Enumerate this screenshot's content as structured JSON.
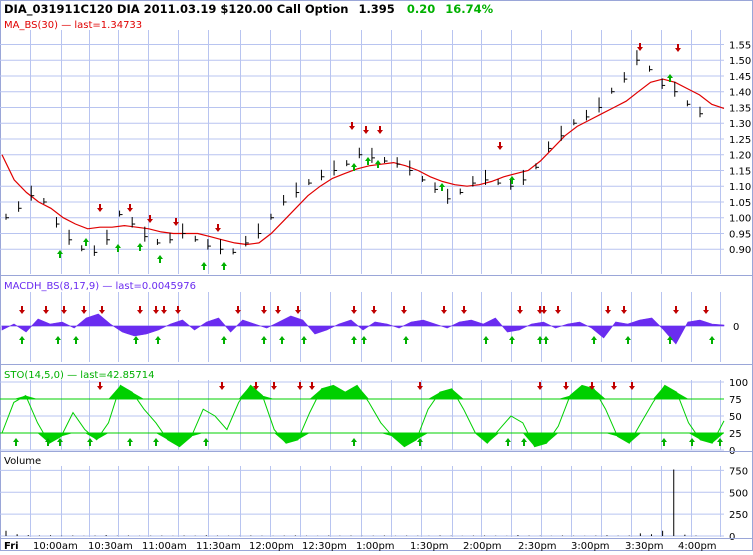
{
  "header": {
    "symbol": "DIA_031911C120 DIA 2011.03.19 $120.00 Call Option",
    "last": "1.395",
    "change": "0.20",
    "change_pct": "16.74%"
  },
  "colors": {
    "grid": "#b8c4f0",
    "frame": "#9aa6d8",
    "price": "#000000",
    "ma": "#e00000",
    "macd_fill": "#6a2cf0",
    "sto": "#00d000",
    "sell_arrow": "#c00000",
    "buy_arrow": "#00b000",
    "up_text": "#00b000",
    "volume": "#000000"
  },
  "chart_data": [
    {
      "type": "line",
      "panel": "price",
      "indicator_label": "MA_BS(30) — last=1.34733",
      "y_ticks": [
        "1.55",
        "1.50",
        "1.45",
        "1.40",
        "1.35",
        "1.30",
        "1.25",
        "1.20",
        "1.15",
        "1.10",
        "1.05",
        "1.00",
        "0.95",
        "0.90"
      ],
      "ylim": [
        0.85,
        1.58
      ],
      "x_labels": [
        "Fri",
        "10:00am",
        "10:30am",
        "11:00am",
        "11:30am",
        "12:00pm",
        "12:30pm",
        "1:00pm",
        "1:30pm",
        "2:00pm",
        "2:30pm",
        "3:00pm",
        "3:30pm",
        "4:00pm"
      ],
      "price": [
        1.0,
        1.03,
        1.07,
        1.05,
        0.98,
        0.93,
        0.9,
        0.89,
        0.93,
        1.01,
        0.98,
        0.94,
        0.92,
        0.93,
        0.95,
        0.93,
        0.91,
        0.9,
        0.89,
        0.92,
        0.95,
        1.0,
        1.05,
        1.08,
        1.11,
        1.13,
        1.15,
        1.17,
        1.2,
        1.19,
        1.18,
        1.17,
        1.15,
        1.12,
        1.09,
        1.06,
        1.08,
        1.11,
        1.12,
        1.11,
        1.1,
        1.12,
        1.16,
        1.22,
        1.26,
        1.3,
        1.32,
        1.35,
        1.4,
        1.44,
        1.5,
        1.47,
        1.42,
        1.4,
        1.36,
        1.33
      ],
      "ma": [
        1.2,
        1.12,
        1.08,
        1.05,
        1.03,
        1.0,
        0.98,
        0.965,
        0.97,
        0.97,
        0.975,
        0.97,
        0.965,
        0.955,
        0.95,
        0.95,
        0.95,
        0.94,
        0.93,
        0.92,
        0.915,
        0.92,
        0.95,
        0.99,
        1.03,
        1.07,
        1.1,
        1.125,
        1.14,
        1.155,
        1.165,
        1.17,
        1.175,
        1.165,
        1.15,
        1.13,
        1.115,
        1.105,
        1.1,
        1.105,
        1.115,
        1.13,
        1.14,
        1.15,
        1.18,
        1.22,
        1.26,
        1.29,
        1.31,
        1.33,
        1.35,
        1.37,
        1.4,
        1.43,
        1.44,
        1.43,
        1.41,
        1.39,
        1.36,
        1.347
      ]
    },
    {
      "type": "area",
      "panel": "macd",
      "indicator_label": "MACDH_BS(8,17,9) — last=0.0045976",
      "y_ticks": [
        "0"
      ],
      "values": [
        -0.2,
        0.1,
        -0.3,
        0.35,
        0.1,
        0.2,
        -0.1,
        0.4,
        0.6,
        0.1,
        -0.3,
        -0.5,
        -0.4,
        -0.2,
        0.1,
        0.3,
        -0.2,
        0.2,
        0.4,
        -0.3,
        0.3,
        0.1,
        -0.1,
        0.2,
        0.5,
        0.3,
        -0.4,
        -0.2,
        0.1,
        0.3,
        -0.2,
        0.2,
        0.1,
        -0.1,
        0.2,
        0.3,
        0.1,
        -0.1,
        0.2,
        0.3,
        0.1,
        0.4,
        -0.3,
        -0.2,
        0.1,
        0.2,
        -0.1,
        0.1,
        0.2,
        -0.1,
        -0.6,
        0.2,
        0.1,
        0.3,
        0.4,
        -0.2,
        -0.9,
        0.2,
        0.3,
        0.1,
        0.05
      ]
    },
    {
      "type": "area",
      "panel": "stochastic",
      "indicator_label": "STO(14,5,0) — last=42.85714",
      "y_ticks": [
        "100",
        "75",
        "50",
        "25",
        "0"
      ],
      "ylim": [
        0,
        100
      ],
      "levels": [
        75,
        25
      ],
      "values": [
        25,
        70,
        80,
        40,
        10,
        20,
        55,
        30,
        15,
        40,
        95,
        85,
        60,
        40,
        15,
        5,
        20,
        60,
        50,
        30,
        70,
        95,
        80,
        30,
        10,
        15,
        55,
        90,
        95,
        85,
        95,
        70,
        40,
        20,
        5,
        15,
        60,
        85,
        90,
        60,
        25,
        10,
        30,
        50,
        40,
        5,
        10,
        35,
        80,
        95,
        90,
        60,
        20,
        10,
        40,
        70,
        95,
        85,
        40,
        15,
        10,
        42.85714
      ]
    },
    {
      "type": "bar",
      "panel": "volume",
      "indicator_label": "Volume",
      "y_ticks": [
        "750",
        "500",
        "250",
        "0"
      ],
      "ylim": [
        0,
        800
      ],
      "values": [
        60,
        20,
        10,
        5,
        8,
        3,
        5,
        2,
        4,
        10,
        3,
        5,
        2,
        3,
        4,
        2,
        5,
        3,
        8,
        4,
        3,
        2,
        5,
        3,
        2,
        4,
        6,
        3,
        2,
        5,
        3,
        4,
        2,
        3,
        5,
        2,
        4,
        3,
        2,
        6,
        3,
        2,
        4,
        5,
        3,
        2,
        10,
        4,
        3,
        2,
        5,
        3,
        2,
        4,
        8,
        3,
        5,
        30,
        20,
        60,
        760,
        15,
        5
      ]
    }
  ]
}
